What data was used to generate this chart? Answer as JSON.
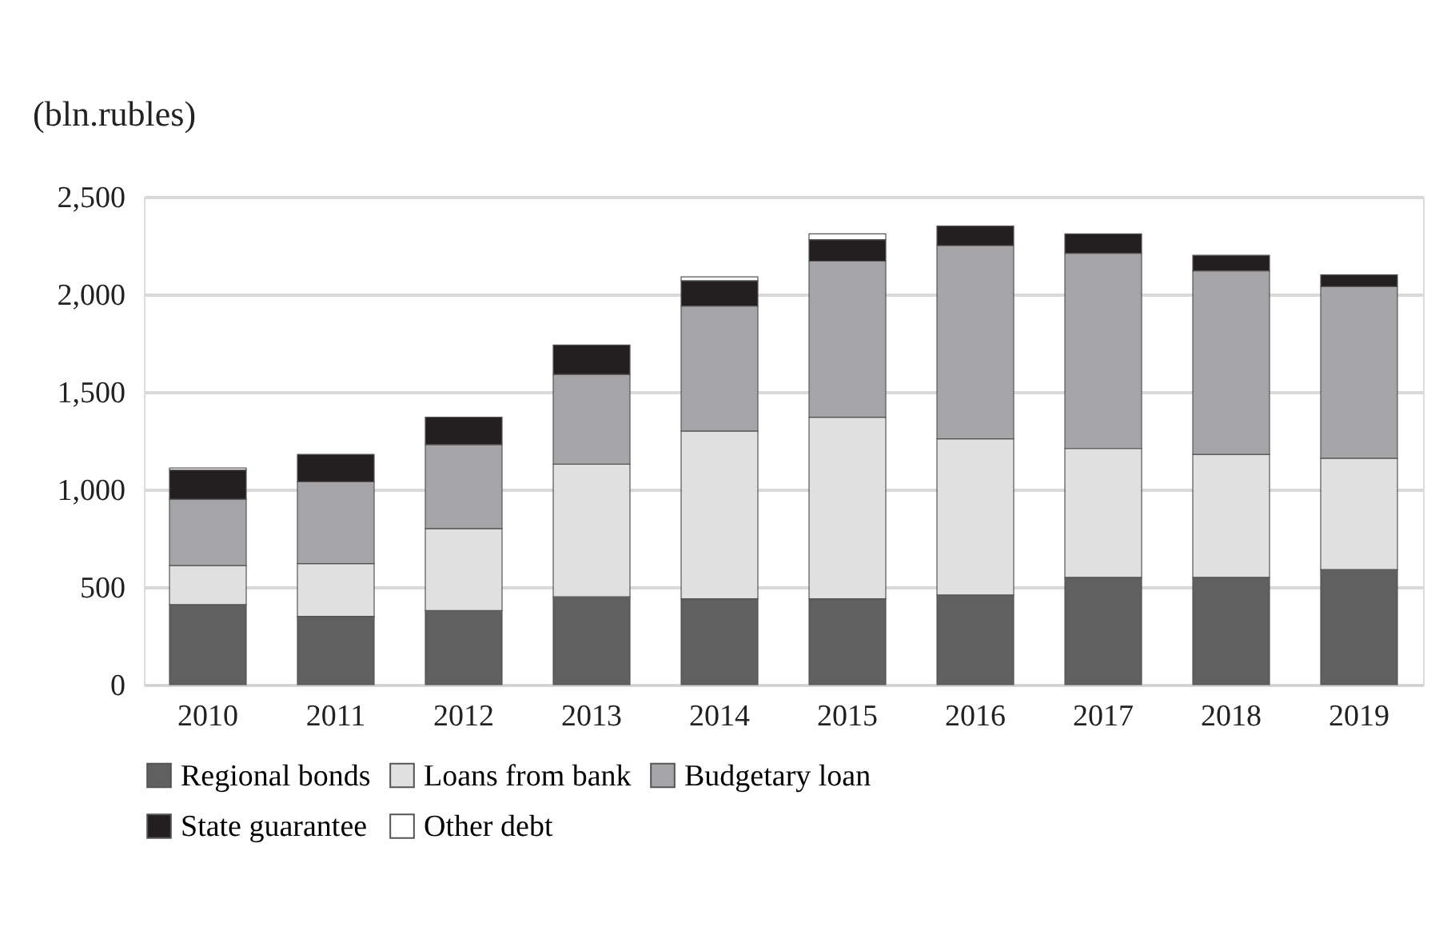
{
  "chart_data": {
    "type": "bar",
    "stacked": true,
    "ylabel": "(bln.rubles)",
    "categories": [
      "2010",
      "2011",
      "2012",
      "2013",
      "2014",
      "2015",
      "2016",
      "2017",
      "2018",
      "2019"
    ],
    "series": [
      {
        "name": "Regional bonds",
        "color": "#606060",
        "values": [
          410,
          350,
          380,
          450,
          440,
          440,
          460,
          550,
          550,
          590
        ]
      },
      {
        "name": "Loans from bank",
        "color": "#e0e0e0",
        "values": [
          200,
          270,
          420,
          680,
          860,
          930,
          800,
          660,
          630,
          570
        ]
      },
      {
        "name": "Budgetary loan",
        "color": "#a5a5a7",
        "values": [
          340,
          420,
          430,
          460,
          640,
          800,
          990,
          1000,
          940,
          880
        ]
      },
      {
        "name": "State guarantee",
        "color": "#231f20",
        "values": [
          150,
          140,
          140,
          150,
          130,
          110,
          100,
          100,
          80,
          60
        ]
      },
      {
        "name": "Other debt",
        "color": "#ffffff",
        "values": [
          10,
          0,
          0,
          0,
          20,
          30,
          0,
          0,
          0,
          0
        ]
      }
    ],
    "ylim": [
      0,
      2500
    ],
    "yticks": [
      0,
      {
        "value": 500,
        "label": "500"
      },
      {
        "value": 1000,
        "label": "1,000"
      },
      {
        "value": 1500,
        "label": "1,500"
      },
      {
        "value": 2000,
        "label": "2,000"
      },
      {
        "value": 2500,
        "label": "2,500"
      }
    ],
    "grid": "y",
    "legend": "bottom"
  }
}
